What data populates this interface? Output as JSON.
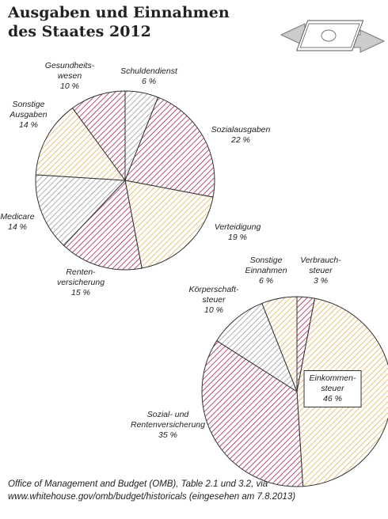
{
  "header": {
    "title": "Ausgaben und Einnahmen\ndes Staates 2012"
  },
  "chart_data": [
    {
      "type": "pie",
      "categories": [
        "Schuldendienst",
        "Sozialausgaben",
        "Verteidigung",
        "Renten-\nversicherung",
        "Medicare",
        "Sonstige\nAusgaben",
        "Gesundheits-\nwesen"
      ],
      "values": [
        6,
        22,
        19,
        15,
        14,
        14,
        10
      ],
      "value_labels": [
        "6 %",
        "22 %",
        "19 %",
        "15 %",
        "14 %",
        "14 %",
        "10 %"
      ],
      "colors": [
        "#9a9a9a",
        "#a8244f",
        "#e3b25a",
        "#a8244f",
        "#9a9a9a",
        "#e3b25a",
        "#a8244f"
      ]
    },
    {
      "type": "pie",
      "categories": [
        "Verbrauch-\nsteuer",
        "Einkommen-\nsteuer",
        "Sozial- und\nRentenversicherung",
        "Körperschaft-\nsteuer",
        "Sonstige\nEinnahmen"
      ],
      "values": [
        3,
        46,
        35,
        10,
        6
      ],
      "value_labels": [
        "3 %",
        "46 %",
        "35 %",
        "10 %",
        "6 %"
      ],
      "colors": [
        "#a8244f",
        "#e3b25a",
        "#a8244f",
        "#9a9a9a",
        "#e3b25a"
      ]
    }
  ],
  "footer": {
    "source": "Office of Management and Budget (OMB), Table 2.1 und 3.2, via www.whitehouse.gov/omb/budget/historicals (eingesehen am 7.8.2013)"
  }
}
